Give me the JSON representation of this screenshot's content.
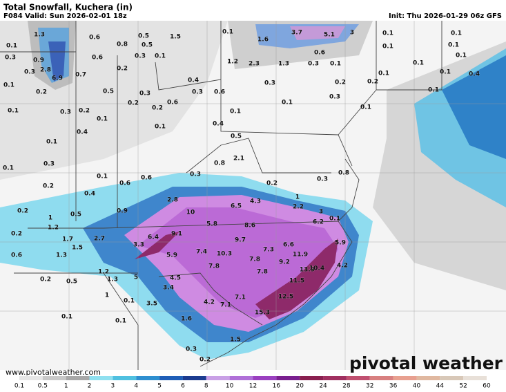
{
  "header": {
    "title": "Total Snowfall, Kuchera (in)",
    "valid": "F084 Valid: Sun 2026-02-01 18z",
    "init": "Init: Thu 2026-01-29 06z GFS"
  },
  "map_labels": [
    1.3,
    0.6,
    0.5,
    1.5,
    0.1,
    3.7,
    5.1,
    3.0,
    0.1,
    0.1,
    0.1,
    0.8,
    0.5,
    1.6,
    0.6,
    0.1,
    0.1,
    0.3,
    0.9,
    0.6,
    0.3,
    0.1,
    1.2,
    2.3,
    1.3,
    0.3,
    0.1,
    0.1,
    0.1,
    0.3,
    2.8,
    0.7,
    0.2,
    0.1,
    0.1,
    0.4,
    0.1,
    6.9,
    0.2,
    0.5,
    0.3,
    0.4,
    0.3,
    0.2,
    0.2,
    0.1,
    0.3,
    0.6,
    0.3,
    0.2,
    0.6,
    0.1,
    0.1,
    0.3,
    0.2,
    0.2,
    0.1,
    0.1,
    0.1,
    0.1,
    0.4,
    0.1,
    0.4,
    0.5,
    2.1,
    0.3,
    0.1,
    0.3,
    0.8,
    0.8,
    0.3,
    0.1,
    0.6,
    0.6,
    0.2,
    1.0,
    0.2,
    0.4,
    2.8,
    4.3,
    2.2,
    0.2,
    0.5,
    0.9,
    10.0,
    6.5,
    3.0,
    1.0,
    5.8,
    8.6,
    6.2,
    0.1,
    1.2,
    0.2,
    6.4,
    9.1,
    9.7,
    1.7,
    2.7,
    7.3,
    6.6,
    5.9,
    1.5,
    3.3,
    7.4,
    10.3,
    7.8,
    11.9,
    0.6,
    1.3,
    5.9,
    9.2,
    4.2,
    1.2,
    7.8,
    7.8,
    13.9,
    10.4,
    0.2,
    0.5,
    1.3,
    5.0,
    4.5,
    11.5,
    3.4,
    1.0,
    7.1,
    12.5,
    0.1,
    3.5,
    4.2,
    7.1,
    0.1,
    0.1,
    1.6,
    15.3,
    1.5,
    0.3,
    0.2
  ],
  "colorbar": {
    "ticks": [
      0.1,
      0.5,
      1,
      2,
      3,
      4,
      5,
      6,
      8,
      10,
      12,
      16,
      20,
      24,
      28,
      32,
      36,
      40,
      44,
      52,
      60
    ],
    "colors": [
      "#e6e6e6",
      "#c8c8c8",
      "#a8a8a8",
      "#8fe0f0",
      "#4fc0e0",
      "#2e8fd0",
      "#1f5fb8",
      "#1c3c90",
      "#c9a0e6",
      "#b070d8",
      "#9a40c0",
      "#7a2090",
      "#8a2050",
      "#a03060",
      "#c05070",
      "#d88080",
      "#e8a090",
      "#e0b8a0",
      "#d8c8b8",
      "#e8e0d8"
    ]
  },
  "footer": {
    "url": "www.pivotalweather.com",
    "logo": "pivotal weather"
  }
}
